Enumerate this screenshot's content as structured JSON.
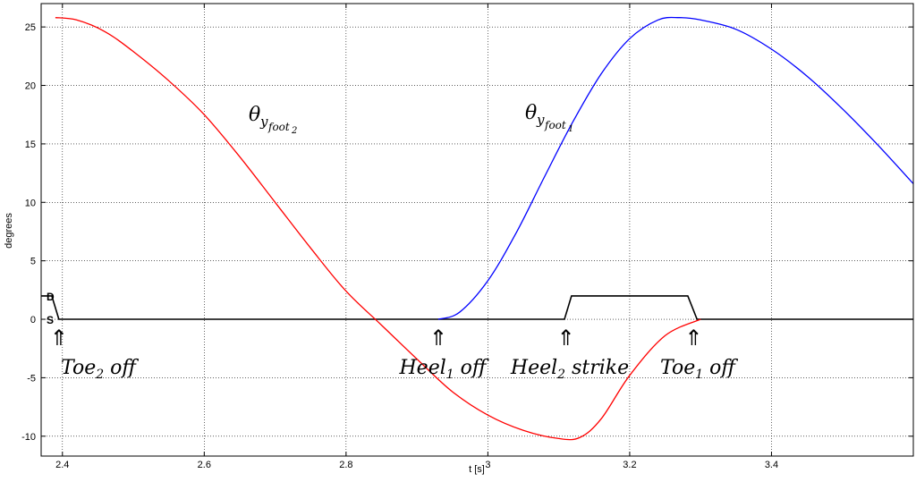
{
  "chart_data": {
    "type": "line",
    "title": "",
    "xlabel": "t [s]",
    "ylabel": "degrees",
    "xlim": [
      2.37,
      3.6
    ],
    "ylim": [
      -11.7,
      27
    ],
    "grid": true,
    "x_ticks": [
      2.4,
      2.6,
      2.8,
      3,
      3.2,
      3.4
    ],
    "x_tick_labels": [
      "2.4",
      "2.6",
      "2.8",
      "3",
      "3.2",
      "3.4"
    ],
    "y_ticks": [
      -10,
      -5,
      0,
      5,
      10,
      15,
      20,
      25
    ],
    "y_tick_labels": [
      "-10",
      "-5",
      "0",
      "5",
      "10",
      "15",
      "20",
      "25"
    ],
    "series": [
      {
        "name": "foot2",
        "label_base": "θ",
        "label_sub": "y",
        "label_subsub": "foot",
        "label_subsubsub": "2",
        "color": "#ff0000",
        "x": [
          2.39,
          2.42,
          2.46,
          2.5,
          2.55,
          2.6,
          2.65,
          2.7,
          2.75,
          2.8,
          2.85,
          2.9,
          2.95,
          3.0,
          3.05,
          3.1,
          3.13,
          3.16,
          3.2,
          3.25,
          3.3
        ],
        "y": [
          25.8,
          25.6,
          24.6,
          22.9,
          20.4,
          17.5,
          13.9,
          10.0,
          6.1,
          2.4,
          -0.5,
          -3.4,
          -6.2,
          -8.2,
          -9.5,
          -10.2,
          -10.1,
          -8.5,
          -4.8,
          -1.4,
          0.0
        ]
      },
      {
        "name": "foot1",
        "label_base": "θ",
        "label_sub": "y",
        "label_subsub": "foot",
        "label_subsubsub": "1",
        "color": "#0000ff",
        "x": [
          2.93,
          2.96,
          3.0,
          3.04,
          3.08,
          3.12,
          3.16,
          3.2,
          3.24,
          3.27,
          3.3,
          3.35,
          3.4,
          3.45,
          3.5,
          3.55,
          3.6
        ],
        "y": [
          0.0,
          0.6,
          3.3,
          7.4,
          12.2,
          16.9,
          21.0,
          24.0,
          25.6,
          25.8,
          25.6,
          24.8,
          23.1,
          20.8,
          18.0,
          14.9,
          11.6
        ]
      }
    ],
    "support_phase": {
      "color": "#000000",
      "levels": {
        "S": 0,
        "D": 2
      },
      "x": [
        2.37,
        2.385,
        2.395,
        2.395,
        3.108,
        3.118,
        3.282,
        3.295,
        3.6
      ],
      "y": [
        2,
        2,
        0,
        0,
        0,
        2,
        2,
        0,
        0
      ]
    },
    "events": [
      {
        "x": 2.395,
        "text": "Toe",
        "sub": "2",
        "suffix": " off"
      },
      {
        "x": 2.93,
        "text": "Heel",
        "sub": "1",
        "suffix": " off"
      },
      {
        "x": 3.11,
        "text": "Heel",
        "sub": "2",
        "suffix": " strike"
      },
      {
        "x": 3.29,
        "text": "Toe",
        "sub": "1",
        "suffix": " off"
      }
    ],
    "arrow_glyph": "⇑",
    "phase_labels": {
      "double": "D",
      "single": "S"
    }
  }
}
